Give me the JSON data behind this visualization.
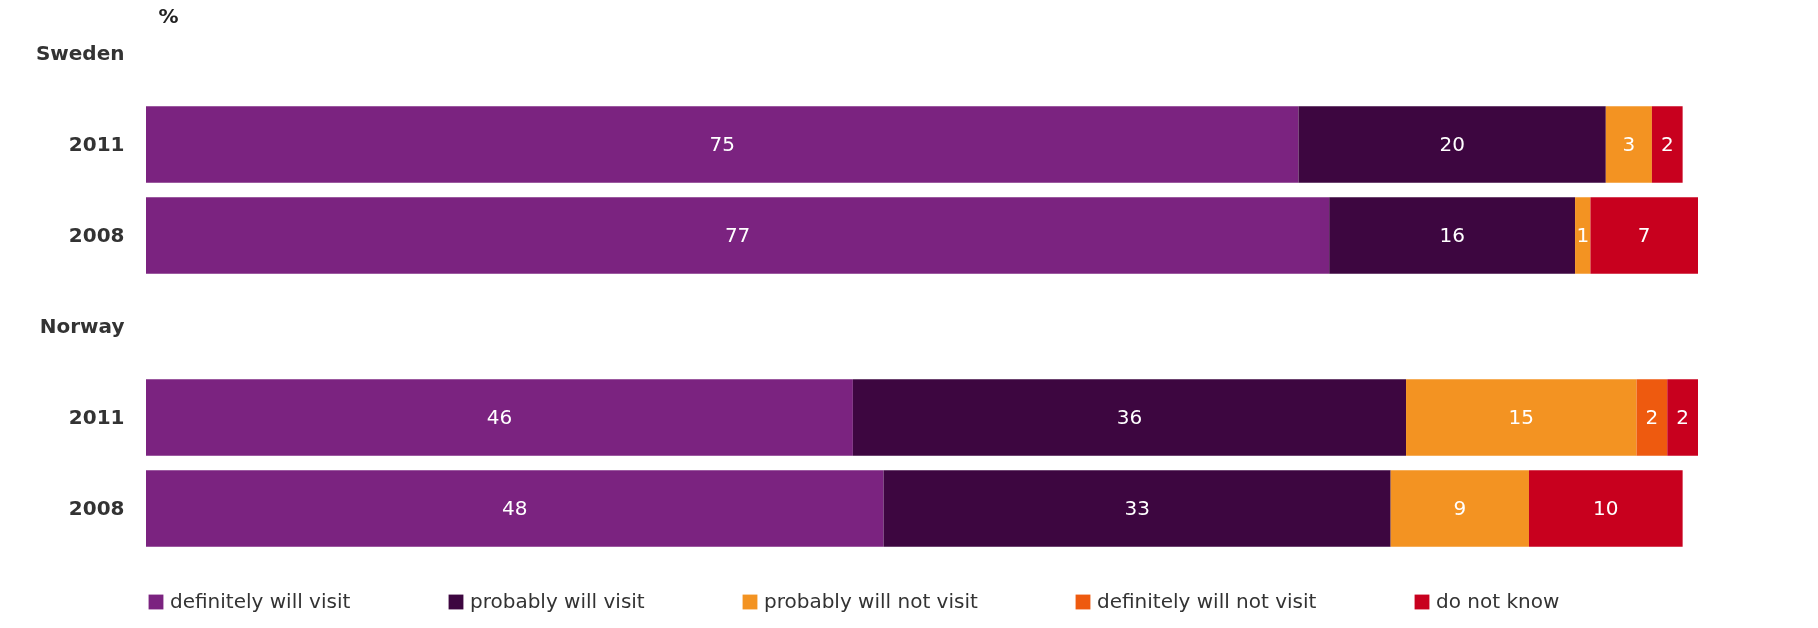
{
  "chart_data": {
    "type": "bar",
    "orientation": "horizontal",
    "stacked": true,
    "ylabel": "%",
    "categories": [
      "Sweden",
      "2011",
      "2008",
      "Norway",
      "2011",
      "2008"
    ],
    "series": [
      {
        "name": "definitely will visit",
        "color": "#7b2380",
        "values": [
          null,
          75,
          77,
          null,
          46,
          48
        ]
      },
      {
        "name": "probably will visit",
        "color": "#3d0640",
        "values": [
          null,
          20,
          16,
          null,
          36,
          33
        ]
      },
      {
        "name": "probably will not visit",
        "color": "#f39322",
        "values": [
          null,
          3,
          1,
          null,
          15,
          9
        ]
      },
      {
        "name": "definitely will not visit",
        "color": "#ee5a0f",
        "values": [
          null,
          null,
          null,
          null,
          2,
          null
        ]
      },
      {
        "name": "do not know",
        "color": "#c8001e",
        "values": [
          null,
          2,
          7,
          null,
          2,
          10
        ]
      }
    ],
    "data_labels": true,
    "legend": "bottom",
    "grid": false
  }
}
